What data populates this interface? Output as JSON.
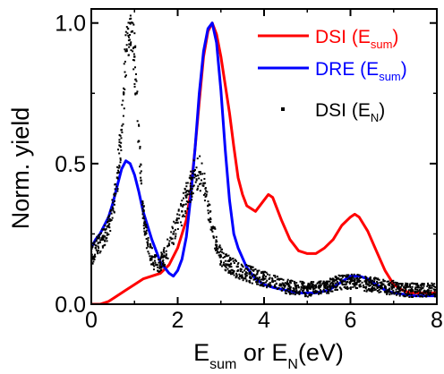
{
  "chart_data": {
    "type": "line",
    "title": "",
    "xlabel": {
      "main": "E",
      "sub": "sum",
      "mid": " or E",
      "sub2": "N",
      "end": "(eV)"
    },
    "ylabel": "Norm. yield",
    "xlim": [
      0,
      8
    ],
    "ylim": [
      0,
      1.05
    ],
    "xticks": [
      0,
      2,
      4,
      6,
      8
    ],
    "xtick_labels": [
      "0",
      "2",
      "4",
      "6",
      "8"
    ],
    "yticks": [
      0.0,
      0.5,
      1.0
    ],
    "ytick_labels": [
      "0.0",
      "0.5",
      "1.0"
    ],
    "grid": false,
    "legend_position": "top-right",
    "series": [
      {
        "name": "DSI (E_sum)",
        "label_main": "DSI (E",
        "label_sub": "sum",
        "label_end": ")",
        "color": "#ff0000",
        "style": "line",
        "x": [
          0,
          0.2,
          0.4,
          0.6,
          0.8,
          1.0,
          1.2,
          1.4,
          1.6,
          1.8,
          2.0,
          2.2,
          2.3,
          2.4,
          2.5,
          2.6,
          2.7,
          2.8,
          2.9,
          3.0,
          3.1,
          3.2,
          3.3,
          3.4,
          3.5,
          3.6,
          3.8,
          4.0,
          4.1,
          4.2,
          4.4,
          4.6,
          4.8,
          5.0,
          5.2,
          5.4,
          5.6,
          5.8,
          6.0,
          6.1,
          6.2,
          6.4,
          6.6,
          6.8,
          7.0,
          7.2,
          7.4,
          7.6,
          7.8,
          8.0
        ],
        "y": [
          0.0,
          0.0,
          0.01,
          0.03,
          0.05,
          0.07,
          0.09,
          0.1,
          0.11,
          0.14,
          0.2,
          0.3,
          0.4,
          0.55,
          0.72,
          0.88,
          0.97,
          1.0,
          0.96,
          0.88,
          0.78,
          0.68,
          0.56,
          0.45,
          0.39,
          0.35,
          0.33,
          0.37,
          0.39,
          0.38,
          0.3,
          0.23,
          0.19,
          0.18,
          0.18,
          0.2,
          0.23,
          0.28,
          0.31,
          0.32,
          0.31,
          0.26,
          0.19,
          0.12,
          0.07,
          0.05,
          0.04,
          0.04,
          0.04,
          0.04
        ]
      },
      {
        "name": "DRE (E_sum)",
        "label_main": "DRE (E",
        "label_sub": "sum",
        "label_end": ")",
        "color": "#0000ff",
        "style": "line",
        "x": [
          0,
          0.1,
          0.2,
          0.3,
          0.4,
          0.5,
          0.6,
          0.7,
          0.8,
          0.9,
          1.0,
          1.1,
          1.2,
          1.4,
          1.6,
          1.8,
          1.9,
          2.0,
          2.1,
          2.2,
          2.3,
          2.4,
          2.5,
          2.6,
          2.7,
          2.8,
          2.9,
          3.0,
          3.1,
          3.2,
          3.3,
          3.4,
          3.6,
          3.8,
          4.0,
          4.2,
          4.5,
          4.8,
          5.0,
          5.2,
          5.5,
          5.8,
          6.0,
          6.1,
          6.2,
          6.4,
          6.6,
          6.8,
          7.0,
          7.5,
          8.0
        ],
        "y": [
          0.2,
          0.23,
          0.25,
          0.28,
          0.31,
          0.36,
          0.42,
          0.48,
          0.51,
          0.5,
          0.46,
          0.4,
          0.33,
          0.23,
          0.15,
          0.11,
          0.1,
          0.12,
          0.16,
          0.24,
          0.38,
          0.55,
          0.75,
          0.9,
          0.98,
          1.0,
          0.93,
          0.76,
          0.55,
          0.37,
          0.25,
          0.2,
          0.13,
          0.09,
          0.07,
          0.06,
          0.05,
          0.04,
          0.04,
          0.04,
          0.05,
          0.08,
          0.1,
          0.1,
          0.1,
          0.09,
          0.07,
          0.05,
          0.04,
          0.03,
          0.03
        ]
      },
      {
        "name": "DSI (E_N)",
        "label_main": "DSI (E",
        "label_sub": "N",
        "label_end": ")",
        "color": "#000000",
        "style": "scatter",
        "x": [
          0.0,
          0.1,
          0.2,
          0.3,
          0.4,
          0.5,
          0.6,
          0.7,
          0.75,
          0.8,
          0.85,
          0.9,
          0.95,
          1.0,
          1.05,
          1.1,
          1.15,
          1.2,
          1.3,
          1.4,
          1.5,
          1.6,
          1.7,
          1.8,
          1.9,
          2.0,
          2.1,
          2.2,
          2.3,
          2.4,
          2.5,
          2.6,
          2.7,
          2.8,
          2.9,
          3.0,
          3.2,
          3.4,
          3.6,
          3.8,
          4.0,
          4.2,
          4.4,
          4.6,
          4.8,
          5.0,
          5.2,
          5.4,
          5.6,
          5.8,
          6.0,
          6.2,
          6.4,
          6.6,
          6.8,
          7.0,
          7.2,
          7.4,
          7.6,
          7.8,
          8.0
        ],
        "y": [
          0.17,
          0.2,
          0.22,
          0.24,
          0.28,
          0.34,
          0.45,
          0.62,
          0.75,
          0.9,
          0.98,
          1.0,
          0.97,
          0.88,
          0.75,
          0.58,
          0.44,
          0.33,
          0.22,
          0.17,
          0.14,
          0.15,
          0.17,
          0.21,
          0.25,
          0.29,
          0.33,
          0.38,
          0.42,
          0.46,
          0.47,
          0.43,
          0.35,
          0.27,
          0.21,
          0.17,
          0.14,
          0.12,
          0.11,
          0.1,
          0.09,
          0.08,
          0.07,
          0.06,
          0.06,
          0.05,
          0.06,
          0.06,
          0.07,
          0.08,
          0.08,
          0.08,
          0.07,
          0.07,
          0.06,
          0.06,
          0.05,
          0.05,
          0.05,
          0.05,
          0.05
        ]
      }
    ]
  }
}
